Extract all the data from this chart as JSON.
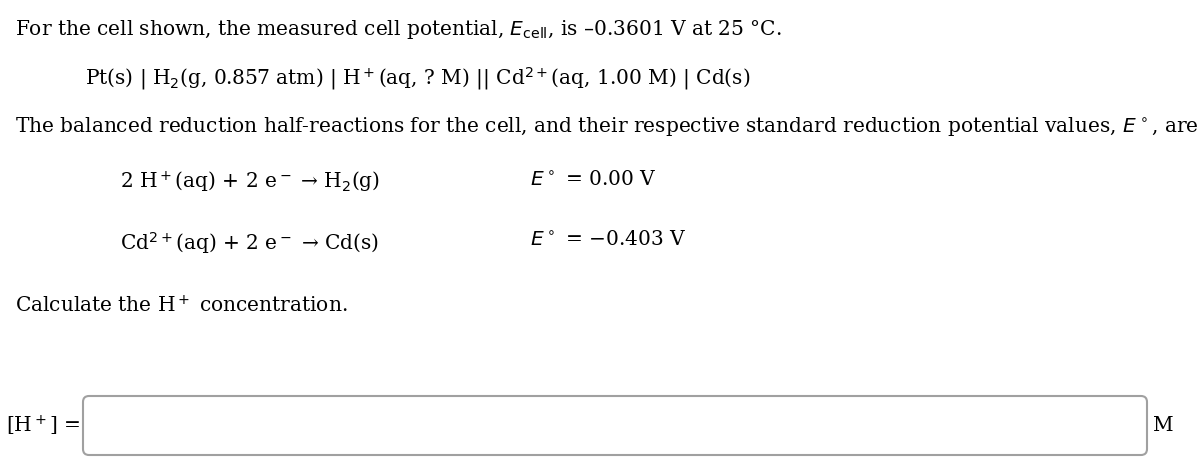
{
  "bg_color": "#ffffff",
  "text_color": "#000000",
  "fig_width": 12.0,
  "fig_height": 4.69,
  "line1": "For the cell shown, the measured cell potential, $E_{\\mathrm{cell}}$, is –0.3601 V at 25 °C.",
  "line2": "Pt(s) | H$_2$(g, 0.857 atm) | H$^+$(aq, ? M) || Cd$^{2+}$(aq, 1.00 M) | Cd(s)",
  "line3": "The balanced reduction half-reactions for the cell, and their respective standard reduction potential values, $E^\\circ$, are",
  "rxn1_left": "2 H$^+$(aq) + 2 e$^-$ → H$_2$(g)",
  "rxn1_right": "$E^\\circ$ = 0.00 V",
  "rxn2_left": "Cd$^{2+}$(aq) + 2 e$^-$ → Cd(s)",
  "rxn2_right": "$E^\\circ$ = −0.403 V",
  "line4": "Calculate the H$^+$ concentration.",
  "answer_label": "[H$^+$] =",
  "answer_unit": "M",
  "font_size_main": 14.5,
  "box_edge_color": "#a0a0a0"
}
